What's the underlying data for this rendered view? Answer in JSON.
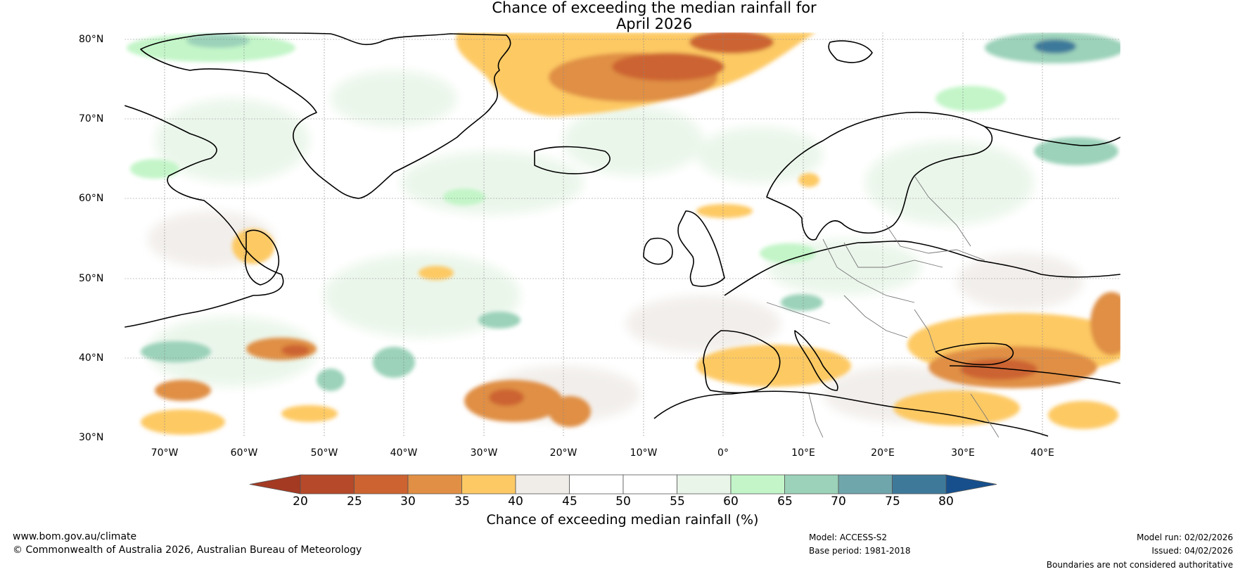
{
  "title_line1": "Chance of exceeding the median rainfall for",
  "title_line2": "April 2026",
  "lat_ticks": [
    "80°N",
    "70°N",
    "60°N",
    "50°N",
    "40°N",
    "30°N"
  ],
  "lon_ticks": [
    "70°W",
    "60°W",
    "50°W",
    "40°W",
    "30°W",
    "20°W",
    "10°W",
    "0°",
    "10°E",
    "20°E",
    "30°E",
    "40°E"
  ],
  "colorbar": {
    "labels": [
      "20",
      "25",
      "30",
      "35",
      "40",
      "45",
      "50",
      "55",
      "60",
      "65",
      "70",
      "75",
      "80"
    ],
    "colors": [
      "#b5492a",
      "#cc6330",
      "#e08f45",
      "#fdc964",
      "#f0ece8",
      "#ffffff",
      "#ffffff",
      "#e8f5e8",
      "#c3f5c8",
      "#9bd2b9",
      "#6fa6ac",
      "#3e799a"
    ],
    "under_color": "#a43a22",
    "over_color": "#164f8c",
    "title": "Chance of exceeding median rainfall (%)"
  },
  "footer": {
    "url": "www.bom.gov.au/climate",
    "copyright": "© Commonwealth of Australia 2026, Australian Bureau of Meteorology",
    "model": "Model: ACCESS-S2",
    "base_period": "Base period: 1981-2018",
    "model_run": "Model run: 02/02/2026",
    "issued": "Issued: 04/02/2026",
    "disclaimer": "Boundaries are not considered authoritative"
  }
}
